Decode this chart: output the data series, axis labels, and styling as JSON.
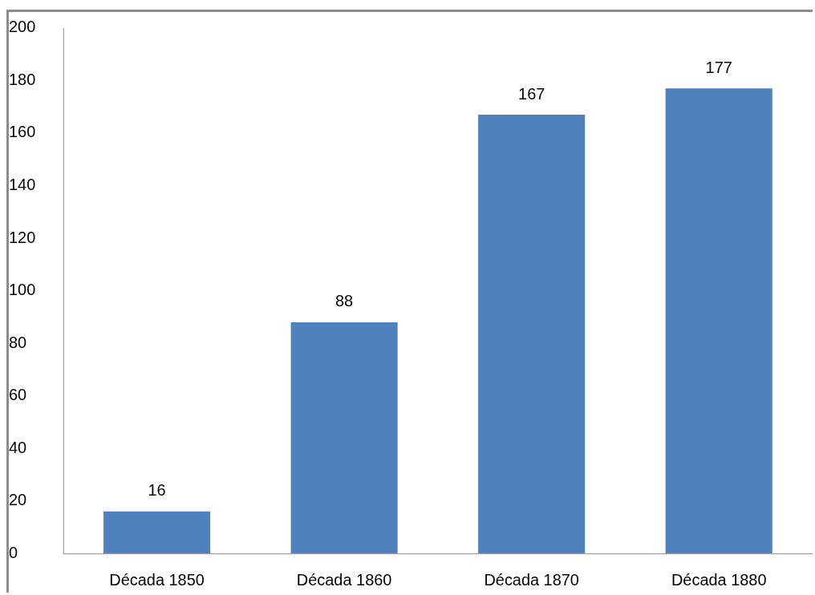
{
  "chart_data": {
    "type": "bar",
    "categories": [
      "Década 1850",
      "Década 1860",
      "Década 1870",
      "Década 1880"
    ],
    "values": [
      16,
      88,
      167,
      177
    ],
    "color": "#4f81bd",
    "ylim": [
      0,
      200
    ],
    "yticks": [
      0,
      20,
      40,
      60,
      80,
      100,
      120,
      140,
      160,
      180,
      200
    ],
    "data_labels": true
  }
}
